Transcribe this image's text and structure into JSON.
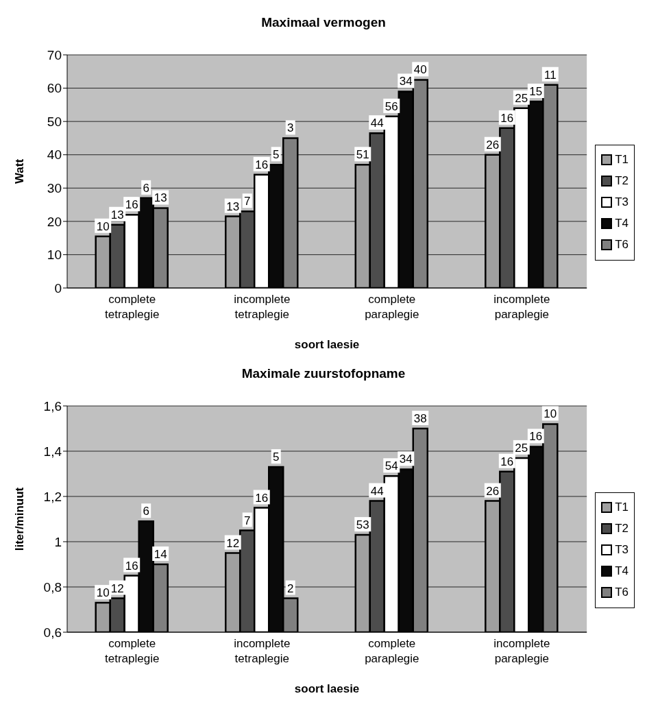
{
  "chart_data": [
    {
      "type": "bar",
      "title": "Maximaal vermogen",
      "xlabel": "soort laesie",
      "ylabel": "Watt",
      "categories": [
        "complete tetraplegie",
        "incomplete tetraplegie",
        "complete paraplegie",
        "incomplete paraplegie"
      ],
      "ylim": [
        0,
        70
      ],
      "yticks": [
        0,
        10,
        20,
        30,
        40,
        50,
        60,
        70
      ],
      "grid": "y",
      "legend": "right",
      "series": [
        {
          "name": "T1",
          "color": "#a0a0a0",
          "values": [
            15.5,
            21.5,
            37,
            40
          ]
        },
        {
          "name": "T2",
          "color": "#4d4d4d",
          "values": [
            19,
            23,
            46.5,
            48
          ]
        },
        {
          "name": "T3",
          "color": "#ffffff",
          "values": [
            22,
            34,
            51.5,
            54
          ]
        },
        {
          "name": "T4",
          "color": "#0a0a0a",
          "values": [
            27,
            37,
            59,
            56
          ]
        },
        {
          "name": "T6",
          "color": "#808080",
          "values": [
            24,
            45,
            62.5,
            61
          ]
        }
      ],
      "annotations": [
        "10",
        "13",
        "16",
        "6",
        "13",
        "13",
        "7",
        "16",
        "5",
        "3",
        "51",
        "44",
        "56",
        "34",
        "40",
        "26",
        "16",
        "25",
        "15",
        "11"
      ]
    },
    {
      "type": "bar",
      "title": "Maximale zuurstofopname",
      "xlabel": "soort laesie",
      "ylabel": "liter/minuut",
      "categories": [
        "complete tetraplegie",
        "incomplete tetraplegie",
        "complete paraplegie",
        "incomplete paraplegie"
      ],
      "ylim": [
        0.6,
        1.6
      ],
      "yticks": [
        {
          "value": 0.6,
          "label": "0,6"
        },
        {
          "value": 0.8,
          "label": "0,8"
        },
        1,
        {
          "value": 1.2,
          "label": "1,2"
        },
        {
          "value": 1.4,
          "label": "1,4"
        },
        {
          "value": 1.6,
          "label": "1,6"
        }
      ],
      "grid": "y",
      "legend": "right",
      "series": [
        {
          "name": "T1",
          "color": "#a0a0a0",
          "values": [
            0.73,
            0.95,
            1.03,
            1.18
          ]
        },
        {
          "name": "T2",
          "color": "#4d4d4d",
          "values": [
            0.75,
            1.05,
            1.18,
            1.31
          ]
        },
        {
          "name": "T3",
          "color": "#ffffff",
          "values": [
            0.85,
            1.15,
            1.29,
            1.37
          ]
        },
        {
          "name": "T4",
          "color": "#0a0a0a",
          "values": [
            1.09,
            1.33,
            1.32,
            1.42
          ]
        },
        {
          "name": "T6",
          "color": "#808080",
          "values": [
            0.9,
            0.75,
            1.5,
            1.52
          ]
        }
      ],
      "annotations": [
        "10",
        "12",
        "16",
        "6",
        "14",
        "12",
        "7",
        "16",
        "5",
        "2",
        "53",
        "44",
        "54",
        "34",
        "38",
        "26",
        "16",
        "25",
        "16",
        "10"
      ]
    }
  ]
}
